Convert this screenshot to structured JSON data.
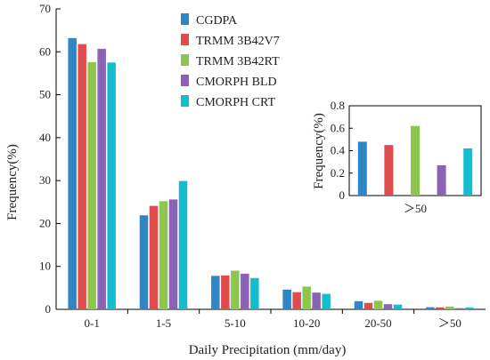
{
  "chart_data": [
    {
      "type": "bar",
      "xlabel": "Daily Precipitation (mm/day)",
      "ylabel": "Frequency(%)",
      "ylim": [
        0,
        70
      ],
      "yticks": [
        0,
        10,
        20,
        30,
        40,
        50,
        60,
        70
      ],
      "categories": [
        "0-1",
        "1-5",
        "5-10",
        "10-20",
        "20-50",
        "＞50"
      ],
      "legend_position": "top-center",
      "series": [
        {
          "name": "CGDPA",
          "color": "#2e86c9",
          "values": [
            63.2,
            21.9,
            7.8,
            4.6,
            1.9,
            0.5
          ]
        },
        {
          "name": "TRMM 3B42V7",
          "color": "#e04c4c",
          "values": [
            61.8,
            24.1,
            7.9,
            4.0,
            1.5,
            0.45
          ]
        },
        {
          "name": "TRMM 3B42RT",
          "color": "#8cc64b",
          "values": [
            57.6,
            25.2,
            9.0,
            5.3,
            2.0,
            0.62
          ]
        },
        {
          "name": "CMORPH BLD",
          "color": "#8a63b5",
          "values": [
            60.7,
            25.6,
            8.3,
            3.9,
            1.2,
            0.27
          ]
        },
        {
          "name": "CMORPH CRT",
          "color": "#15bcd0",
          "values": [
            57.5,
            29.9,
            7.3,
            3.6,
            1.1,
            0.42
          ]
        }
      ]
    },
    {
      "type": "bar",
      "xlabel": "",
      "ylabel": "Frequency(%)",
      "ylim": [
        0,
        0.8
      ],
      "yticks": [
        "0",
        "0.2",
        "0.4",
        "0.6",
        "0.8"
      ],
      "categories": [
        "＞50"
      ],
      "series": [
        {
          "name": "CGDPA",
          "color": "#2e86c9",
          "values": [
            0.48
          ]
        },
        {
          "name": "TRMM 3B42V7",
          "color": "#e04c4c",
          "values": [
            0.45
          ]
        },
        {
          "name": "TRMM 3B42RT",
          "color": "#8cc64b",
          "values": [
            0.62
          ]
        },
        {
          "name": "CMORPH BLD",
          "color": "#8a63b5",
          "values": [
            0.27
          ]
        },
        {
          "name": "CMORPH CRT",
          "color": "#15bcd0",
          "values": [
            0.42
          ]
        }
      ]
    }
  ]
}
